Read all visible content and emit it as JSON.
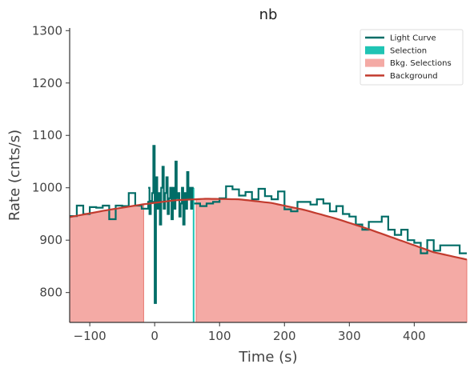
{
  "chart_data": {
    "type": "line",
    "title": "nb",
    "xlabel": "Time (s)",
    "ylabel": "Rate (cnts/s)",
    "xlim": [
      -131,
      481
    ],
    "ylim": [
      743,
      1305
    ],
    "xticks": [
      -100,
      0,
      100,
      200,
      300,
      400
    ],
    "yticks": [
      800,
      900,
      1000,
      1100,
      1200,
      1300
    ],
    "grid": false,
    "legend_position": "top-right",
    "colors": {
      "light_curve": "#006d67",
      "selection": "#1fc4b4",
      "bkg_fill": "#f4aaa5",
      "bkg_edge": "#e8766e",
      "background": "#c23b2e",
      "axis": "#333333"
    },
    "legend": [
      {
        "label": "Light Curve",
        "kind": "line",
        "color": "#006d67"
      },
      {
        "label": "Selection",
        "kind": "patch",
        "color": "#1fc4b4"
      },
      {
        "label": "Bkg. Selections",
        "kind": "patch",
        "color": "#f4aaa5"
      },
      {
        "label": "Background",
        "kind": "line",
        "color": "#c23b2e"
      }
    ],
    "selection": {
      "x": [
        58,
        61
      ]
    },
    "bkg_selections": [
      {
        "x": [
          -131,
          -17
        ]
      },
      {
        "x": [
          64,
          481
        ]
      }
    ],
    "background_poly": {
      "x": [
        -131,
        -75,
        -20,
        30,
        80,
        130,
        180,
        230,
        280,
        330,
        380,
        430,
        481
      ],
      "y": [
        944,
        957,
        968,
        976,
        979,
        978,
        971,
        958,
        941,
        921,
        899,
        877,
        863
      ]
    },
    "light_curve_coarse": {
      "edges": [
        -131,
        -120,
        -110,
        -100,
        -90,
        -80,
        -70,
        -60,
        -50,
        -40,
        -30,
        -20,
        -10,
        0
      ],
      "values": [
        946,
        966,
        950,
        963,
        962,
        966,
        940,
        966,
        965,
        990,
        966,
        960,
        973
      ]
    },
    "light_curve_fine": {
      "edges": [
        -10,
        -8,
        -6,
        -4,
        -2,
        0,
        2,
        4,
        6,
        8,
        10,
        12,
        14,
        16,
        18,
        20,
        22,
        24,
        26,
        28,
        30,
        32,
        34,
        36,
        38,
        40,
        42,
        44,
        46,
        48,
        50,
        52,
        54,
        56,
        58,
        60
      ],
      "values": [
        1000,
        950,
        975,
        990,
        1080,
        780,
        1020,
        960,
        990,
        930,
        1000,
        1040,
        960,
        990,
        1020,
        950,
        980,
        1000,
        940,
        1000,
        960,
        1050,
        980,
        990,
        945,
        970,
        1000,
        930,
        990,
        960,
        1030,
        980,
        1000,
        960,
        1000
      ]
    },
    "light_curve_right": {
      "edges": [
        61,
        70,
        80,
        90,
        100,
        110,
        120,
        130,
        140,
        150,
        160,
        170,
        180,
        190,
        200,
        210,
        220,
        230,
        240,
        250,
        260,
        270,
        280,
        290,
        300,
        310,
        320,
        330,
        340,
        350,
        360,
        370,
        380,
        390,
        400,
        410,
        420,
        430,
        440,
        450,
        460,
        470,
        481
      ],
      "values": [
        970,
        965,
        970,
        973,
        980,
        1003,
        997,
        985,
        992,
        978,
        998,
        984,
        978,
        993,
        959,
        955,
        973,
        973,
        968,
        978,
        970,
        955,
        965,
        950,
        945,
        930,
        920,
        935,
        935,
        945,
        920,
        910,
        920,
        900,
        895,
        875,
        900,
        880,
        890,
        890,
        890,
        875
      ]
    }
  }
}
